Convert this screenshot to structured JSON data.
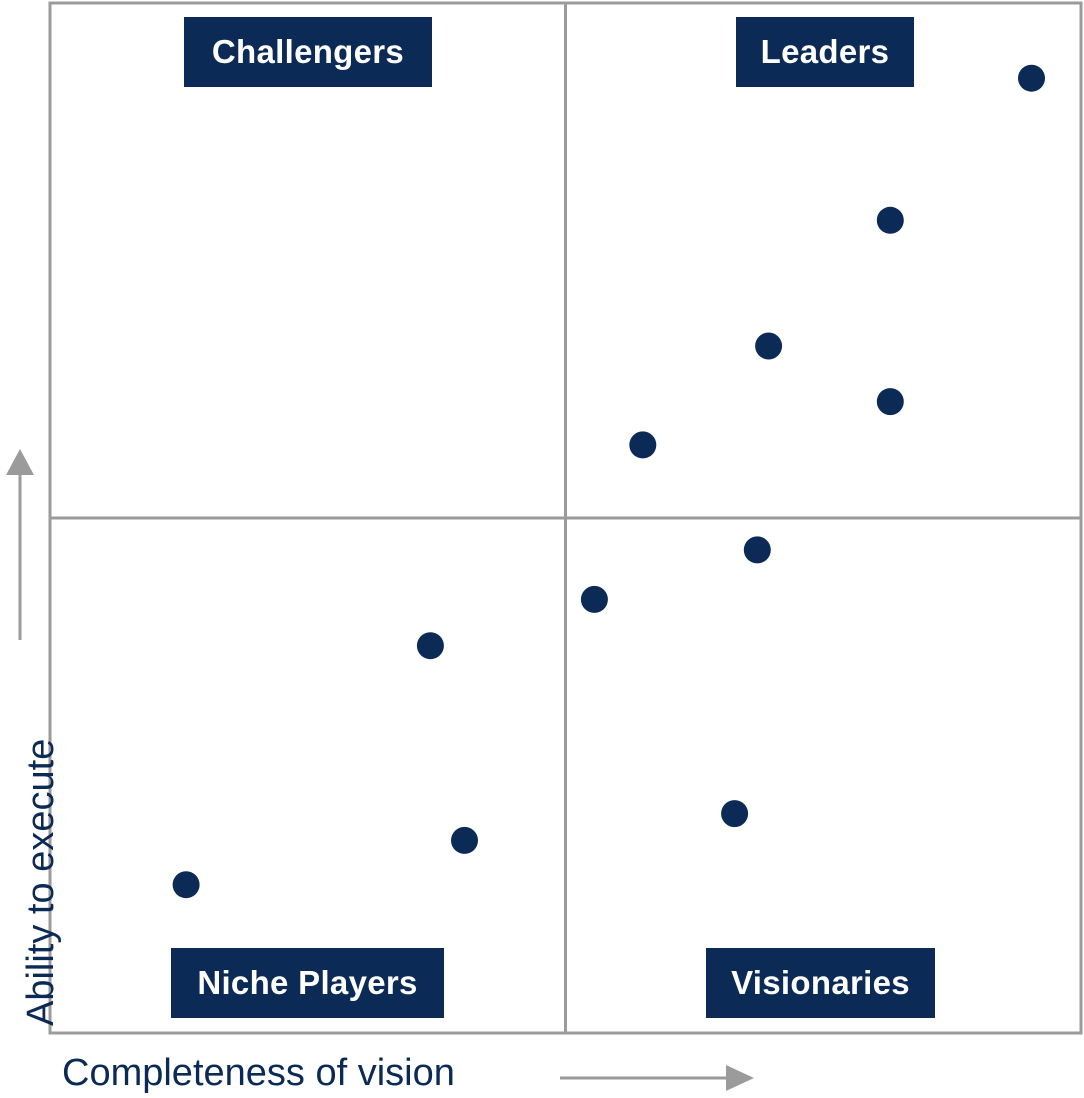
{
  "chart_data": {
    "type": "scatter",
    "title": "",
    "xlabel": "Completeness of vision",
    "ylabel": "Ability to execute",
    "xlim": [
      0,
      1
    ],
    "ylim": [
      0,
      1
    ],
    "grid": false,
    "quadrants": {
      "top_left": "Challengers",
      "top_right": "Leaders",
      "bottom_left": "Niche Players",
      "bottom_right": "Visionaries"
    },
    "points": [
      {
        "x": 0.952,
        "y": 0.927
      },
      {
        "x": 0.815,
        "y": 0.789
      },
      {
        "x": 0.697,
        "y": 0.667
      },
      {
        "x": 0.815,
        "y": 0.613
      },
      {
        "x": 0.575,
        "y": 0.571
      },
      {
        "x": 0.686,
        "y": 0.469
      },
      {
        "x": 0.528,
        "y": 0.421
      },
      {
        "x": 0.369,
        "y": 0.376
      },
      {
        "x": 0.664,
        "y": 0.213
      },
      {
        "x": 0.402,
        "y": 0.187
      },
      {
        "x": 0.132,
        "y": 0.144
      }
    ],
    "colors": {
      "point": "#0b2a55",
      "label_bg": "#0b2a55",
      "frame": "#9b9b9b",
      "arrow": "#9b9b9b"
    }
  }
}
